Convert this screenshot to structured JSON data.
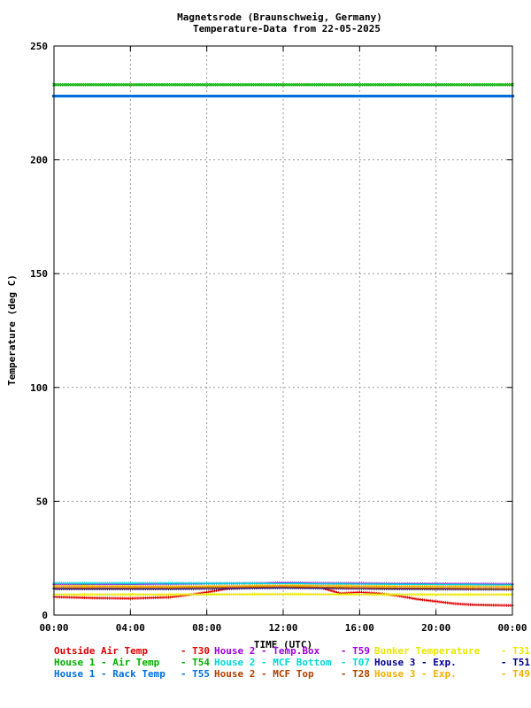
{
  "chart_data": {
    "type": "scatter",
    "title": "Magnetsrode (Braunschweig, Germany)",
    "subtitle": "Temperature-Data from 22-05-2025",
    "xlabel": "TIME (UTC)",
    "ylabel": "Temperature (deg C)",
    "x_range_hours": [
      0,
      24
    ],
    "ylim": [
      0,
      250
    ],
    "x_ticks": [
      "00:00",
      "04:00",
      "08:00",
      "12:00",
      "16:00",
      "20:00",
      "00:00"
    ],
    "y_ticks": [
      0,
      50,
      100,
      150,
      200,
      250
    ],
    "grid": true,
    "legend_placement": "bottom",
    "series": [
      {
        "name": "Outside Air Temp",
        "code": "T30",
        "color": "#e00000",
        "marker": "+",
        "points": [
          [
            0,
            8
          ],
          [
            2,
            7.5
          ],
          [
            4,
            7.3
          ],
          [
            6,
            7.8
          ],
          [
            7,
            8.8
          ],
          [
            8,
            10
          ],
          [
            9,
            11.5
          ],
          [
            10,
            12
          ],
          [
            12,
            12.5
          ],
          [
            14,
            12
          ],
          [
            15,
            9.5
          ],
          [
            16,
            10
          ],
          [
            17,
            9.5
          ],
          [
            18,
            8.5
          ],
          [
            19,
            7
          ],
          [
            20,
            6
          ],
          [
            21,
            5
          ],
          [
            22,
            4.5
          ],
          [
            24,
            4.2
          ]
        ]
      },
      {
        "name": "House 2 - Temp.Box",
        "code": "T59",
        "color": "#a000e0",
        "marker": "+",
        "points": [
          [
            0,
            13.5
          ],
          [
            4,
            13.5
          ],
          [
            8,
            13.8
          ],
          [
            11,
            14
          ],
          [
            12,
            14.2
          ],
          [
            14,
            14
          ],
          [
            18,
            13.8
          ],
          [
            20,
            13.7
          ],
          [
            24,
            13.6
          ]
        ]
      },
      {
        "name": "Bunker Temperature",
        "code": "T31",
        "color": "#e8e800",
        "marker": "+",
        "points": [
          [
            0,
            9
          ],
          [
            6,
            9
          ],
          [
            12,
            9.2
          ],
          [
            18,
            9
          ],
          [
            24,
            9
          ]
        ]
      },
      {
        "name": "House 1 - Air  Temp",
        "code": "T54",
        "color": "#00b000",
        "marker": "x",
        "points": [
          [
            0,
            233
          ],
          [
            6,
            233
          ],
          [
            12,
            233
          ],
          [
            18,
            233
          ],
          [
            24,
            233
          ]
        ]
      },
      {
        "name": "House 2 - MCF Bottom",
        "code": "T07",
        "color": "#00d8d8",
        "marker": "+",
        "points": [
          [
            0,
            14
          ],
          [
            6,
            14
          ],
          [
            12,
            13.8
          ],
          [
            18,
            13.5
          ],
          [
            24,
            13.2
          ]
        ]
      },
      {
        "name": "House 3 - Exp.",
        "code": "T51",
        "color": "#00008c",
        "marker": "+",
        "points": [
          [
            0,
            11.5
          ],
          [
            6,
            11.5
          ],
          [
            12,
            12
          ],
          [
            18,
            11.5
          ],
          [
            24,
            11.3
          ]
        ]
      },
      {
        "name": "House 1 - Rack Temp",
        "code": "T55",
        "color": "#0070e0",
        "marker": "dash",
        "points": [
          [
            0,
            228
          ],
          [
            6,
            228
          ],
          [
            12,
            228
          ],
          [
            18,
            228
          ],
          [
            24,
            228
          ]
        ]
      },
      {
        "name": "House 2 - MCF Top",
        "code": "T28",
        "color": "#b04000",
        "marker": "+",
        "points": [
          [
            0,
            12
          ],
          [
            6,
            12
          ],
          [
            8,
            12.2
          ],
          [
            12,
            12.5
          ],
          [
            16,
            12
          ],
          [
            20,
            11.8
          ],
          [
            24,
            11.5
          ]
        ]
      },
      {
        "name": "House 3 - Exp.",
        "code": "T49",
        "color": "#f0b000",
        "marker": "+",
        "points": [
          [
            0,
            12.8
          ],
          [
            6,
            12.5
          ],
          [
            12,
            13
          ],
          [
            18,
            12.6
          ],
          [
            24,
            12.4
          ]
        ]
      }
    ]
  }
}
